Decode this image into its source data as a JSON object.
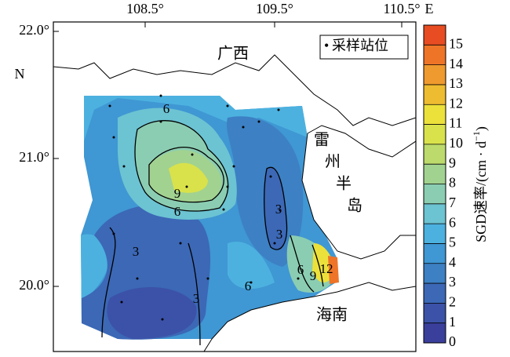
{
  "map": {
    "lon_labels": [
      "108.5°",
      "109.5°",
      "110.5°"
    ],
    "lon_unit": "E",
    "lat_labels": [
      "22.0°",
      "21.0°",
      "20.0°"
    ],
    "lat_unit": "N",
    "place_labels": {
      "guangxi": "广西",
      "leizhou": [
        "雷",
        "州",
        "半",
        "岛"
      ],
      "hainan": "海南"
    },
    "legend": {
      "marker": "•",
      "label": "采样站位"
    },
    "contour_labels": [
      6,
      9,
      6,
      3,
      3,
      3,
      3,
      6,
      6,
      9,
      12
    ],
    "colorbar": {
      "title": [
        "SGD速率/(cm · d",
        "−1",
        ")"
      ],
      "range": [
        0,
        16
      ],
      "ticks": [
        0,
        1,
        2,
        3,
        4,
        5,
        6,
        7,
        8,
        9,
        10,
        11,
        12,
        13,
        14,
        15
      ],
      "colors": [
        "#3a3f9c",
        "#3c52a8",
        "#3c68b6",
        "#3d80c4",
        "#3f97d3",
        "#4cb1df",
        "#6cc3d2",
        "#8bcdb2",
        "#a2d290",
        "#bcdb6c",
        "#d9e24b",
        "#ece13b",
        "#eebc31",
        "#ef9a2e",
        "#ee7428",
        "#e84c22"
      ]
    }
  }
}
